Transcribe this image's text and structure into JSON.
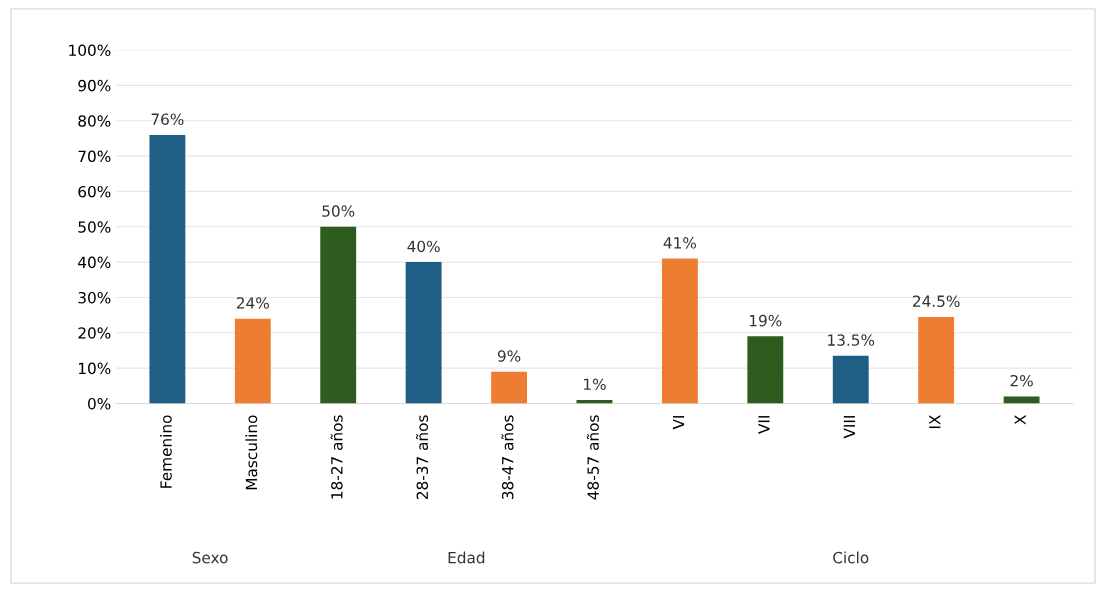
{
  "chart_data": {
    "type": "bar",
    "categories": [
      "Femenino",
      "Masculino",
      "18-27 años",
      "28-37 años",
      "38-47 años",
      "48-57 años",
      "VI",
      "VII",
      "VIII",
      "IX",
      "X"
    ],
    "values": [
      76,
      24,
      50,
      40,
      9,
      1,
      41,
      19,
      13.5,
      24.5,
      2
    ],
    "colors": [
      "#1f5f85",
      "#ed7d31",
      "#2e5b1e",
      "#1f5f85",
      "#ed7d31",
      "#2e5b1e",
      "#ed7d31",
      "#2e5b1e",
      "#1f5f85",
      "#ed7d31",
      "#2e5b1e"
    ],
    "value_labels": [
      "76%",
      "24%",
      "50%",
      "40%",
      "9%",
      "1%",
      "41%",
      "19%",
      "13.5%",
      "24.5%",
      "2%"
    ],
    "ylim": [
      0,
      100
    ],
    "yticks": [
      {
        "value": 0,
        "label": "0%"
      },
      {
        "value": 10,
        "label": "10%"
      },
      {
        "value": 20,
        "label": "20%"
      },
      {
        "value": 30,
        "label": "30%"
      },
      {
        "value": 40,
        "label": "40%"
      },
      {
        "value": 50,
        "label": "50%"
      },
      {
        "value": 60,
        "label": "60%"
      },
      {
        "value": 70,
        "label": "70%"
      },
      {
        "value": 80,
        "label": "80%"
      },
      {
        "value": 90,
        "label": "90%"
      },
      {
        "value": 100,
        "label": "100%"
      }
    ],
    "grid": "y",
    "annotations": [
      "Sexo",
      "Edad",
      "Ciclo"
    ]
  }
}
